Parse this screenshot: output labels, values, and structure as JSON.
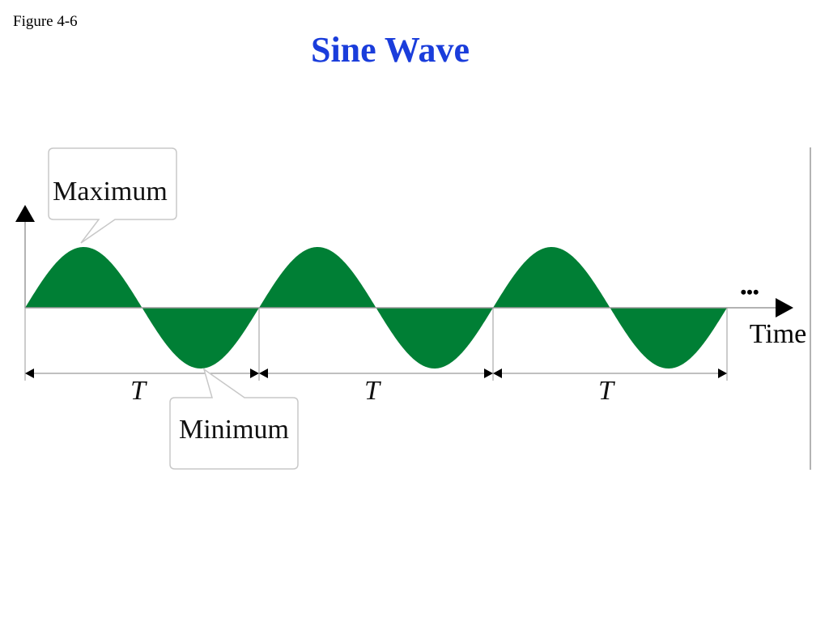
{
  "slide": {
    "figure_label": "Figure 4-6",
    "title": "Sine Wave"
  },
  "diagram": {
    "callouts": {
      "maximum": "Maximum",
      "minimum": "Minimum"
    },
    "axis_label_time": "Time",
    "continuation": "•••",
    "period_labels": [
      "T",
      "T",
      "T"
    ],
    "period_count": 3,
    "colors": {
      "wave_fill": "#007f35",
      "title": "#1a3ddb",
      "axis": "#000000",
      "callout_border": "#c8c8c8"
    }
  }
}
